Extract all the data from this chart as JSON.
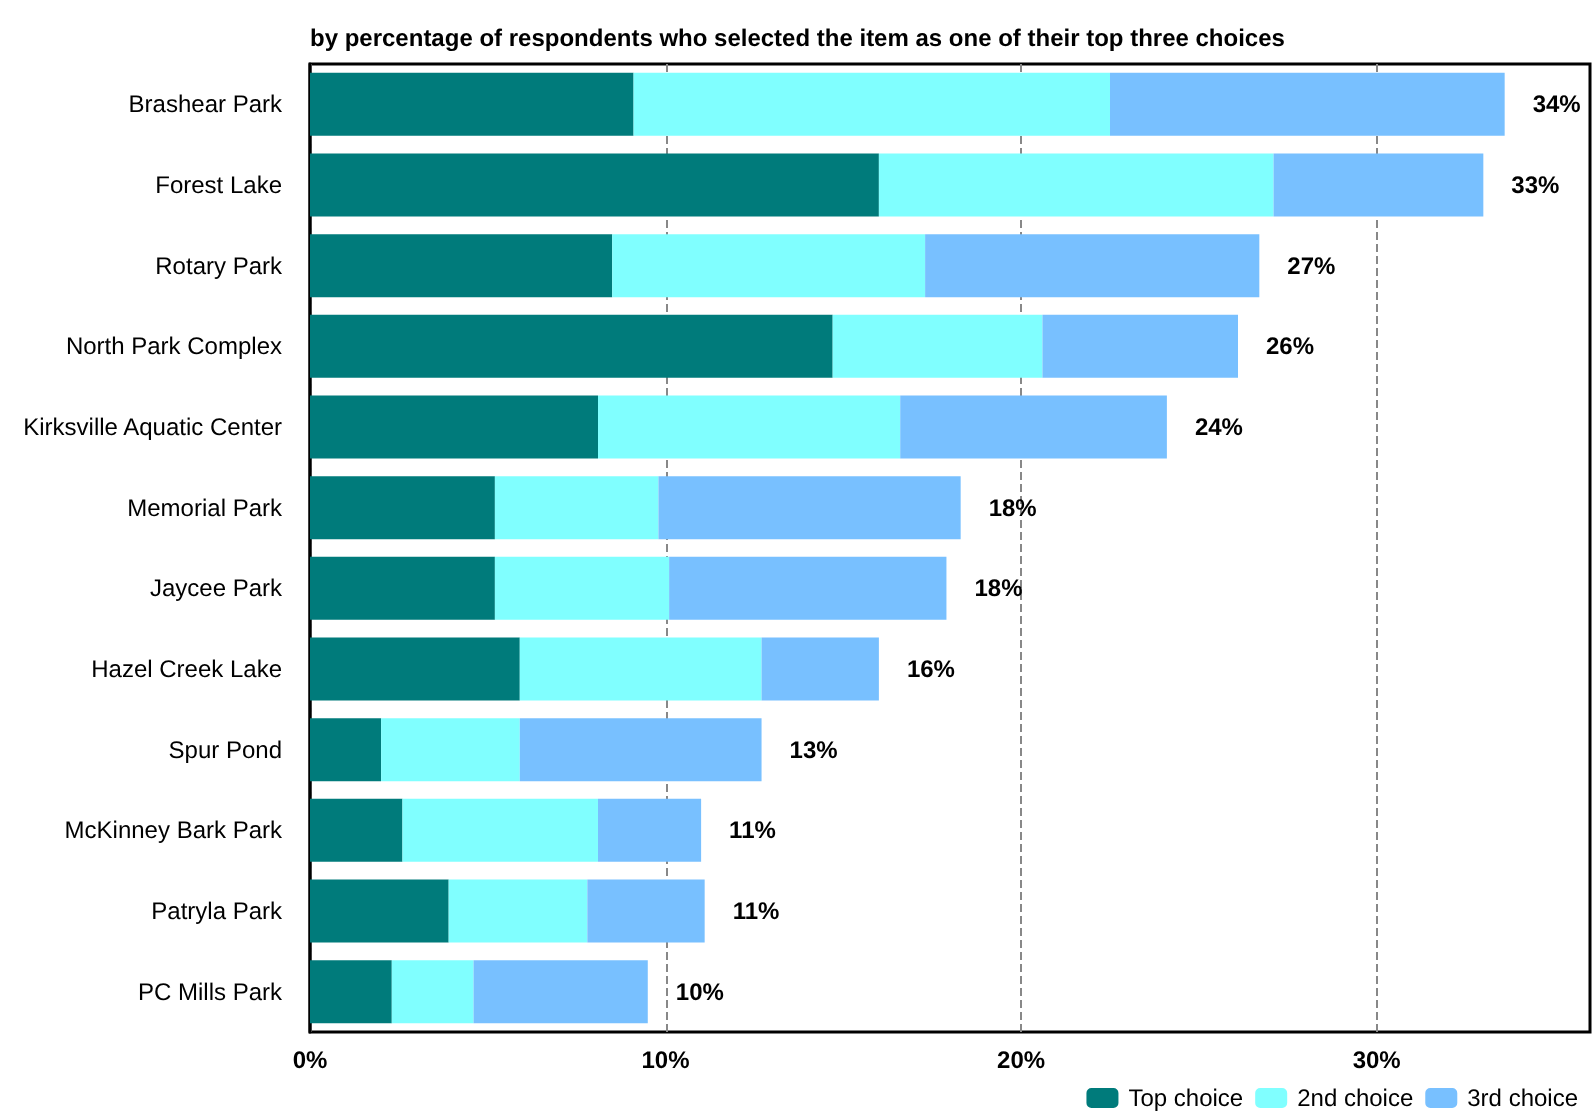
{
  "chart_data": {
    "type": "bar",
    "orientation": "horizontal",
    "stacked": true,
    "title": "by percentage of respondents who selected the item as one of their top three choices",
    "categories": [
      "Brashear Park",
      "Forest Lake",
      "Rotary Park",
      "North Park Complex",
      "Kirksville Aquatic Center",
      "Memorial Park",
      "Jaycee Park",
      "Hazel Creek Lake",
      "Spur Pond",
      "McKinney Bark Park",
      "Patryla Park",
      "PC Mills Park"
    ],
    "series": [
      {
        "name": "Top choice",
        "color": "#007b7b",
        "values": [
          9.1,
          16.0,
          8.5,
          14.7,
          8.1,
          5.2,
          5.2,
          5.9,
          2.0,
          2.6,
          3.9,
          2.3
        ]
      },
      {
        "name": "2nd choice",
        "color": "#80ffff",
        "values": [
          13.4,
          11.1,
          8.8,
          5.9,
          8.5,
          4.6,
          4.9,
          6.8,
          3.9,
          5.5,
          3.9,
          2.3
        ]
      },
      {
        "name": "3rd choice",
        "color": "#78c0ff",
        "values": [
          11.1,
          5.9,
          9.4,
          5.5,
          7.5,
          8.5,
          7.8,
          3.3,
          6.8,
          2.9,
          3.3,
          4.9
        ]
      }
    ],
    "totals": [
      "34%",
      "33%",
      "27%",
      "26%",
      "24%",
      "18%",
      "18%",
      "16%",
      "13%",
      "11%",
      "11%",
      "10%"
    ],
    "xlim": [
      0,
      36
    ],
    "xticks": [
      {
        "value": 0,
        "label": "0%"
      },
      {
        "value": 10,
        "label": "10%"
      },
      {
        "value": 20,
        "label": "20%"
      },
      {
        "value": 30,
        "label": "30%"
      }
    ],
    "grid": "x",
    "legend": "bottom right"
  }
}
